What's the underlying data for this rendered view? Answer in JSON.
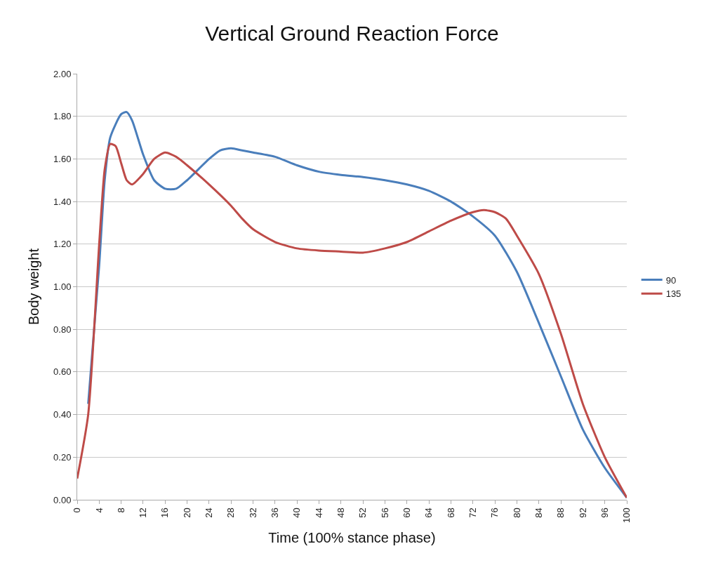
{
  "chart_data": {
    "type": "line",
    "title": "Vertical Ground Reaction Force",
    "xlabel": "Time (100% stance phase)",
    "ylabel": "Body weight",
    "xlim": [
      0,
      100
    ],
    "xticks": [
      0,
      4,
      8,
      12,
      16,
      20,
      24,
      28,
      32,
      36,
      40,
      44,
      48,
      52,
      56,
      60,
      64,
      68,
      72,
      76,
      80,
      84,
      88,
      92,
      96,
      100
    ],
    "ylim": [
      0,
      2
    ],
    "yticks": [
      {
        "value": 0,
        "label": "0.00"
      },
      {
        "value": 0.2,
        "label": "0.20"
      },
      {
        "value": 0.4,
        "label": "0.40"
      },
      {
        "value": 0.6,
        "label": "0.60"
      },
      {
        "value": 0.8,
        "label": "0.80"
      },
      {
        "value": 1.0,
        "label": "1.00"
      },
      {
        "value": 1.2,
        "label": "1.20"
      },
      {
        "value": 1.4,
        "label": "1.40"
      },
      {
        "value": 1.6,
        "label": "1.60"
      },
      {
        "value": 1.8,
        "label": "1.80"
      },
      {
        "value": 2.0,
        "label": "2.00"
      }
    ],
    "grid": "y",
    "legend": "right",
    "marker": "none",
    "line_style": "solid",
    "series": [
      {
        "name": "90",
        "color": "#4a7ebb",
        "x": [
          2,
          4,
          5,
          6,
          8,
          9,
          10,
          12,
          14,
          16,
          18,
          20,
          24,
          26,
          28,
          30,
          32,
          36,
          40,
          44,
          48,
          52,
          56,
          60,
          64,
          68,
          72,
          76,
          80,
          84,
          88,
          92,
          96,
          100
        ],
        "values": [
          0.45,
          1.1,
          1.5,
          1.7,
          1.81,
          1.82,
          1.78,
          1.62,
          1.5,
          1.46,
          1.46,
          1.5,
          1.6,
          1.64,
          1.65,
          1.64,
          1.63,
          1.61,
          1.57,
          1.54,
          1.525,
          1.515,
          1.5,
          1.48,
          1.45,
          1.4,
          1.33,
          1.24,
          1.07,
          0.83,
          0.58,
          0.33,
          0.15,
          0.01
        ]
      },
      {
        "name": "135",
        "color": "#be4b48",
        "x": [
          0,
          2,
          4,
          5,
          6,
          7,
          8,
          9,
          10,
          12,
          14,
          16,
          18,
          20,
          24,
          28,
          30,
          32,
          36,
          40,
          44,
          48,
          52,
          56,
          60,
          64,
          68,
          72,
          74,
          76,
          78,
          80,
          84,
          88,
          92,
          96,
          100
        ],
        "values": [
          0.1,
          0.4,
          1.2,
          1.55,
          1.67,
          1.66,
          1.58,
          1.5,
          1.48,
          1.53,
          1.6,
          1.63,
          1.61,
          1.57,
          1.48,
          1.38,
          1.32,
          1.27,
          1.21,
          1.18,
          1.17,
          1.165,
          1.16,
          1.18,
          1.21,
          1.26,
          1.31,
          1.35,
          1.36,
          1.35,
          1.32,
          1.24,
          1.06,
          0.78,
          0.45,
          0.2,
          0.01
        ]
      }
    ]
  }
}
